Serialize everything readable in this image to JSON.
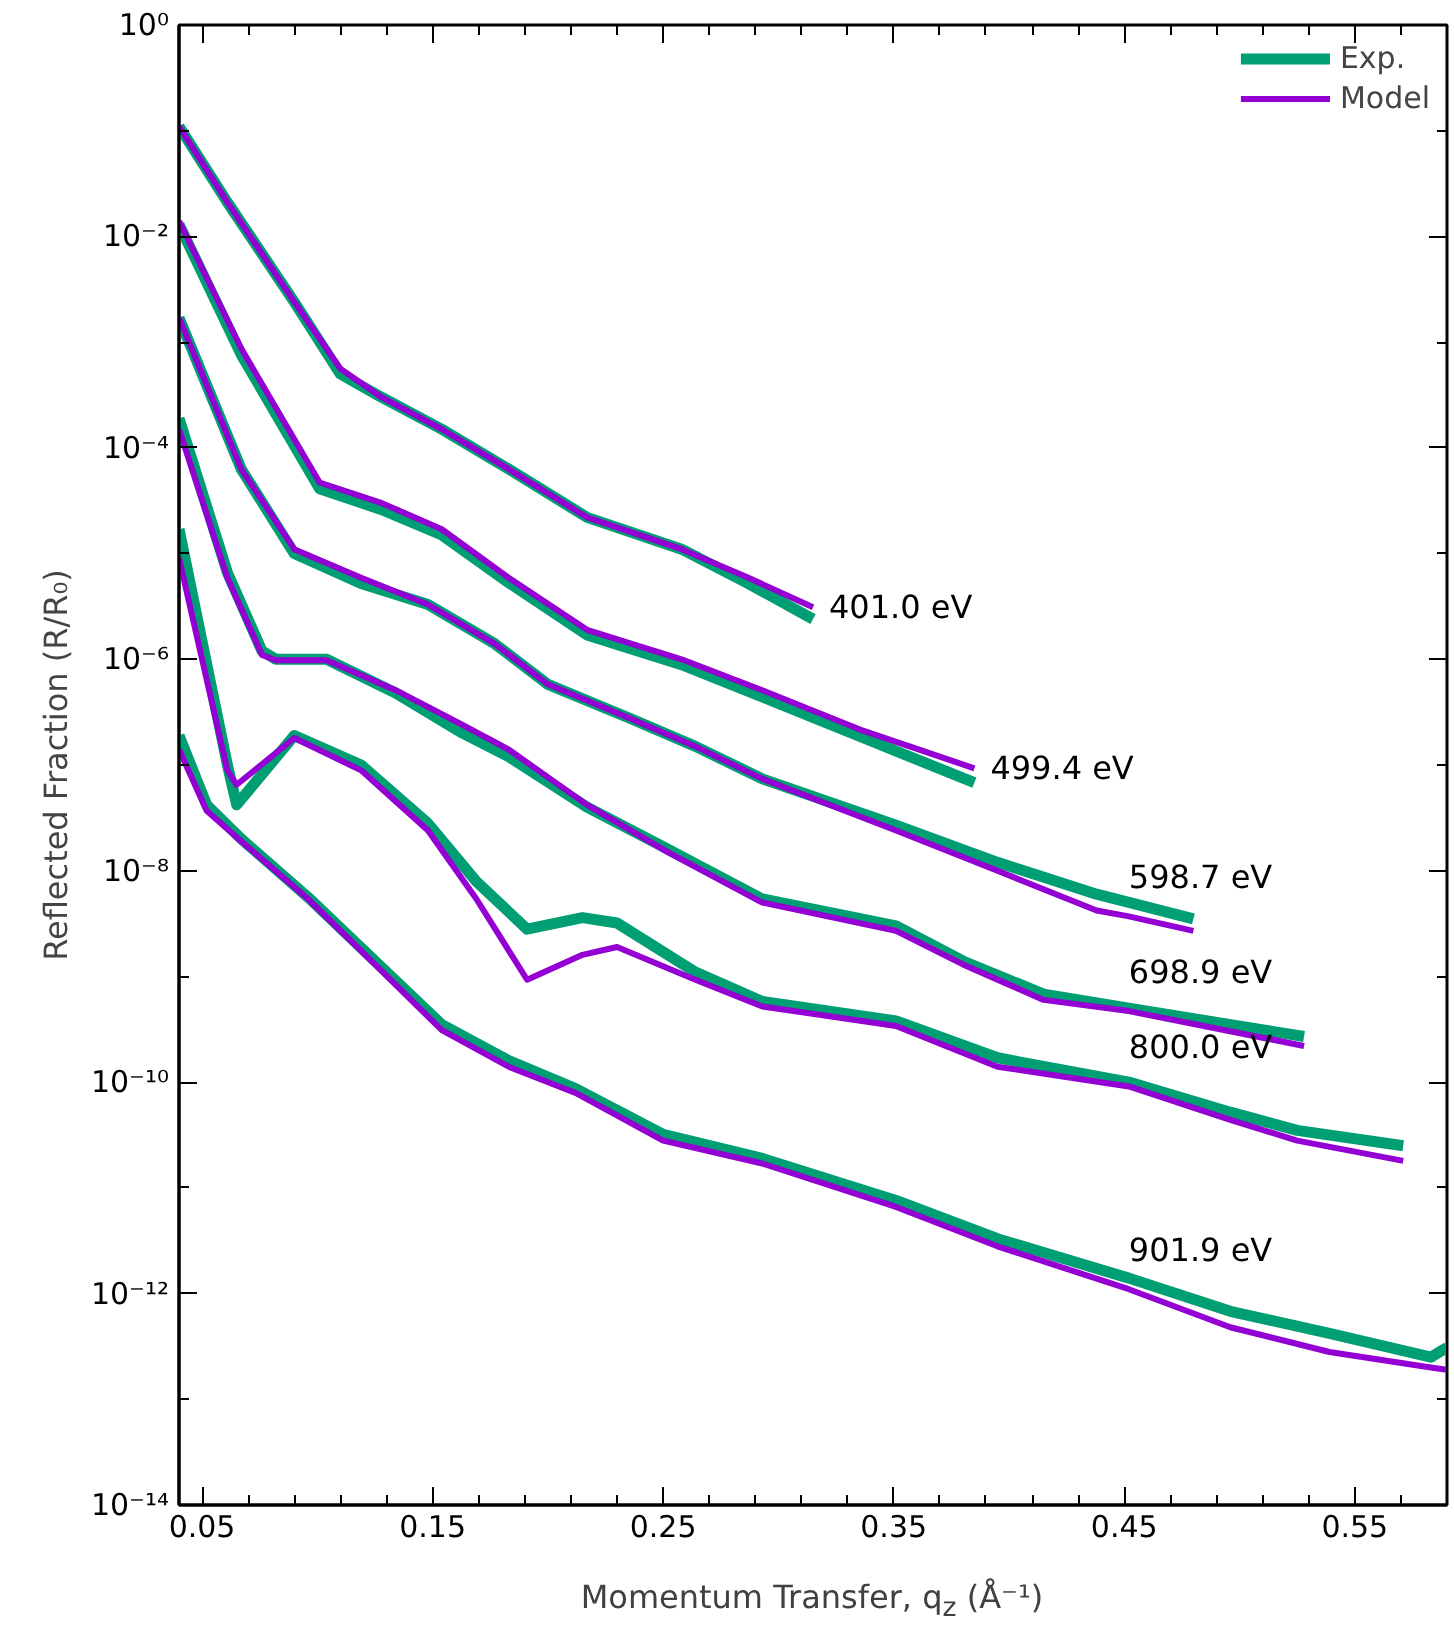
{
  "chart_data": {
    "type": "line",
    "xlabel": "Momentum Transfer, q$_{z}$ (Å⁻¹)",
    "ylabel": "Reflected Fraction (R/R₀)",
    "log": "y",
    "grid": false,
    "legend": "top right",
    "line_style": "solid",
    "marker": "none",
    "xlim": [
      0.04,
      0.59
    ],
    "ylim": [
      1e-14,
      1
    ],
    "xticks": [
      {
        "value": 0.05,
        "label": "0.05"
      },
      {
        "value": 0.07,
        "label": null
      },
      {
        "value": 0.09,
        "label": null
      },
      {
        "value": 0.11,
        "label": null
      },
      {
        "value": 0.13,
        "label": null
      },
      {
        "value": 0.15,
        "label": "0.15"
      },
      {
        "value": 0.17,
        "label": null
      },
      {
        "value": 0.19,
        "label": null
      },
      {
        "value": 0.21,
        "label": null
      },
      {
        "value": 0.23,
        "label": null
      },
      {
        "value": 0.25,
        "label": "0.25"
      },
      {
        "value": 0.27,
        "label": null
      },
      {
        "value": 0.29,
        "label": null
      },
      {
        "value": 0.31,
        "label": null
      },
      {
        "value": 0.33,
        "label": null
      },
      {
        "value": 0.35,
        "label": "0.35"
      },
      {
        "value": 0.37,
        "label": null
      },
      {
        "value": 0.39,
        "label": null
      },
      {
        "value": 0.41,
        "label": null
      },
      {
        "value": 0.43,
        "label": null
      },
      {
        "value": 0.45,
        "label": "0.45"
      },
      {
        "value": 0.47,
        "label": null
      },
      {
        "value": 0.49,
        "label": null
      },
      {
        "value": 0.51,
        "label": null
      },
      {
        "value": 0.53,
        "label": null
      },
      {
        "value": 0.55,
        "label": "0.55"
      },
      {
        "value": 0.57,
        "label": null
      }
    ],
    "yticks": [
      {
        "value": 1,
        "label": "10⁰"
      },
      {
        "value": 0.1,
        "label": null
      },
      {
        "value": 0.01,
        "label": "10⁻²"
      },
      {
        "value": 0.001,
        "label": null
      },
      {
        "value": 0.0001,
        "label": "10⁻⁴"
      },
      {
        "value": 1e-05,
        "label": null
      },
      {
        "value": 1e-06,
        "label": "10⁻⁶"
      },
      {
        "value": 1e-07,
        "label": null
      },
      {
        "value": 1e-08,
        "label": "10⁻⁸"
      },
      {
        "value": 1e-09,
        "label": null
      },
      {
        "value": 1e-10,
        "label": "10⁻¹⁰"
      },
      {
        "value": 1e-11,
        "label": null
      },
      {
        "value": 1e-12,
        "label": "10⁻¹²"
      },
      {
        "value": 1e-13,
        "label": null
      },
      {
        "value": 1e-14,
        "label": "10⁻¹⁴"
      }
    ],
    "series": [
      {
        "name": "Exp.",
        "color": "#009e73",
        "x": [
          0.04,
          0.061,
          0.09,
          0.11,
          0.128,
          0.154,
          0.183,
          0.217,
          0.258,
          0.287,
          0.315
        ],
        "values": [
          0.11,
          0.021,
          0.0024,
          0.0005,
          0.0003,
          0.00015,
          6.3e-05,
          2.2e-05,
          1.1e-05,
          5.2e-06,
          2.4e-06
        ]
      },
      {
        "color": "#009e73",
        "x": [
          0.04,
          0.067,
          0.101,
          0.128,
          0.154,
          0.183,
          0.217,
          0.258,
          0.293,
          0.337,
          0.385
        ],
        "values": [
          0.013,
          0.00076,
          4.1e-05,
          2.6e-05,
          1.5e-05,
          5.3e-06,
          1.7e-06,
          8.9e-07,
          4.4e-07,
          1.8e-07,
          6.8e-08
        ]
      },
      {
        "color": "#009e73",
        "x": [
          0.04,
          0.067,
          0.09,
          0.119,
          0.148,
          0.177,
          0.2,
          0.235,
          0.264,
          0.293,
          0.351,
          0.395,
          0.438,
          0.48
        ],
        "values": [
          0.0017,
          6.3e-05,
          1e-05,
          5.2e-06,
          3.3e-06,
          1.4e-06,
          5.8e-07,
          2.8e-07,
          1.5e-07,
          7.4e-08,
          2.7e-08,
          1.2e-08,
          6e-09,
          3.5e-09
        ]
      },
      {
        "color": "#009e73",
        "x": [
          0.04,
          0.061,
          0.076,
          0.082,
          0.104,
          0.134,
          0.163,
          0.183,
          0.217,
          0.252,
          0.293,
          0.351,
          0.38,
          0.415,
          0.452,
          0.528
        ],
        "values": [
          0.00019,
          6.6e-06,
          1.2e-06,
          1e-06,
          1e-06,
          4.8e-07,
          2e-07,
          1.2e-07,
          4e-08,
          1.6e-08,
          5.4e-09,
          3e-09,
          1.4e-09,
          6.8e-10,
          5e-10,
          2.7e-10
        ]
      },
      {
        "color": "#009e73",
        "x": [
          0.04,
          0.061,
          0.065,
          0.09,
          0.119,
          0.148,
          0.169,
          0.191,
          0.215,
          0.23,
          0.264,
          0.293,
          0.351,
          0.395,
          0.452,
          0.496,
          0.525,
          0.571
        ],
        "values": [
          1.7e-05,
          1e-07,
          4.2e-08,
          1.9e-07,
          1e-07,
          2.8e-08,
          7.9e-09,
          2.8e-09,
          3.6e-09,
          3.2e-09,
          1.1e-09,
          5.8e-10,
          3.8e-10,
          1.7e-10,
          1e-10,
          5.2e-11,
          3.5e-11,
          2.5e-11
        ]
      },
      {
        "color": "#009e73",
        "x": [
          0.04,
          0.052,
          0.067,
          0.096,
          0.125,
          0.154,
          0.183,
          0.212,
          0.25,
          0.293,
          0.351,
          0.395,
          0.452,
          0.496,
          0.539,
          0.583,
          0.59
        ],
        "values": [
          1.9e-07,
          4.2e-08,
          2e-08,
          5.6e-09,
          1.4e-09,
          3.5e-10,
          1.6e-10,
          8.7e-11,
          3.2e-11,
          1.9e-11,
          7.6e-12,
          3.3e-12,
          1.4e-12,
          6.8e-13,
          4.2e-13,
          2.5e-13,
          3.1e-13
        ]
      },
      {
        "name": "Model",
        "color": "#9400d3",
        "x": [
          0.04,
          0.061,
          0.09,
          0.11,
          0.128,
          0.154,
          0.183,
          0.217,
          0.258,
          0.287,
          0.315
        ],
        "values": [
          0.11,
          0.021,
          0.0024,
          0.00056,
          0.0003,
          0.00015,
          6.3e-05,
          2.2e-05,
          1.1e-05,
          5.9e-06,
          3.1e-06
        ]
      },
      {
        "color": "#9400d3",
        "x": [
          0.04,
          0.067,
          0.101,
          0.128,
          0.154,
          0.183,
          0.217,
          0.258,
          0.293,
          0.337,
          0.385
        ],
        "values": [
          0.014,
          0.00087,
          4.7e-05,
          3e-05,
          1.7e-05,
          5.9e-06,
          1.9e-06,
          1e-06,
          5.1e-07,
          2.1e-07,
          9.3e-08
        ]
      },
      {
        "color": "#9400d3",
        "x": [
          0.04,
          0.067,
          0.09,
          0.119,
          0.148,
          0.177,
          0.2,
          0.235,
          0.264,
          0.293,
          0.351,
          0.395,
          0.438,
          0.452,
          0.48
        ],
        "values": [
          0.0017,
          6.3e-05,
          1.1e-05,
          5.9e-06,
          3.3e-06,
          1.4e-06,
          5.8e-07,
          2.8e-07,
          1.5e-07,
          7.4e-08,
          2.4e-08,
          1e-08,
          4.2e-09,
          3.7e-09,
          2.7e-09
        ]
      },
      {
        "color": "#9400d3",
        "x": [
          0.04,
          0.061,
          0.076,
          0.082,
          0.104,
          0.134,
          0.163,
          0.183,
          0.217,
          0.252,
          0.293,
          0.351,
          0.38,
          0.415,
          0.452,
          0.528
        ],
        "values": [
          0.00015,
          5.9e-06,
          1.1e-06,
          9.8e-07,
          9.8e-07,
          5.1e-07,
          2.4e-07,
          1.4e-07,
          4.2e-08,
          1.5e-08,
          5e-09,
          2.7e-09,
          1.3e-09,
          6e-10,
          4.7e-10,
          2.2e-10
        ]
      },
      {
        "color": "#9400d3",
        "x": [
          0.04,
          0.061,
          0.065,
          0.09,
          0.119,
          0.148,
          0.169,
          0.191,
          0.215,
          0.23,
          0.264,
          0.293,
          0.351,
          0.395,
          0.452,
          0.496,
          0.525,
          0.571
        ],
        "values": [
          9.1e-06,
          8.9e-08,
          6.5e-08,
          1.8e-07,
          8.9e-08,
          2.4e-08,
          5.4e-09,
          9.3e-10,
          1.6e-09,
          1.9e-09,
          9.3e-10,
          5.2e-10,
          3.4e-10,
          1.4e-10,
          9.1e-11,
          4.4e-11,
          2.8e-11,
          1.8e-11
        ]
      },
      {
        "color": "#9400d3",
        "x": [
          0.04,
          0.052,
          0.067,
          0.096,
          0.125,
          0.154,
          0.183,
          0.212,
          0.25,
          0.293,
          0.351,
          0.395,
          0.452,
          0.496,
          0.539,
          0.583,
          0.59
        ],
        "values": [
          1.4e-07,
          3.7e-08,
          1.9e-08,
          5.4e-09,
          1.3e-09,
          3.1e-10,
          1.4e-10,
          7.9e-11,
          2.8e-11,
          1.7e-11,
          6.6e-12,
          2.8e-12,
          1.1e-12,
          4.8e-13,
          2.8e-13,
          2e-13,
          1.9e-13
        ]
      }
    ],
    "annotations": [
      {
        "text": "401.0 eV",
        "x": 0.315,
        "y": 3.1e-06
      },
      {
        "text": "499.4 eV",
        "x": 0.385,
        "y": 9.3e-08
      },
      {
        "text": "598.7 eV",
        "x": 0.452,
        "y": 3.7e-09
      },
      {
        "text": "698.9 eV",
        "x": 0.452,
        "y": 4.7e-10
      },
      {
        "text": "800.0 eV",
        "x": 0.452,
        "y": 9.1e-11
      },
      {
        "text": "901.9 eV",
        "x": 0.452,
        "y": 1.1e-12
      }
    ]
  }
}
